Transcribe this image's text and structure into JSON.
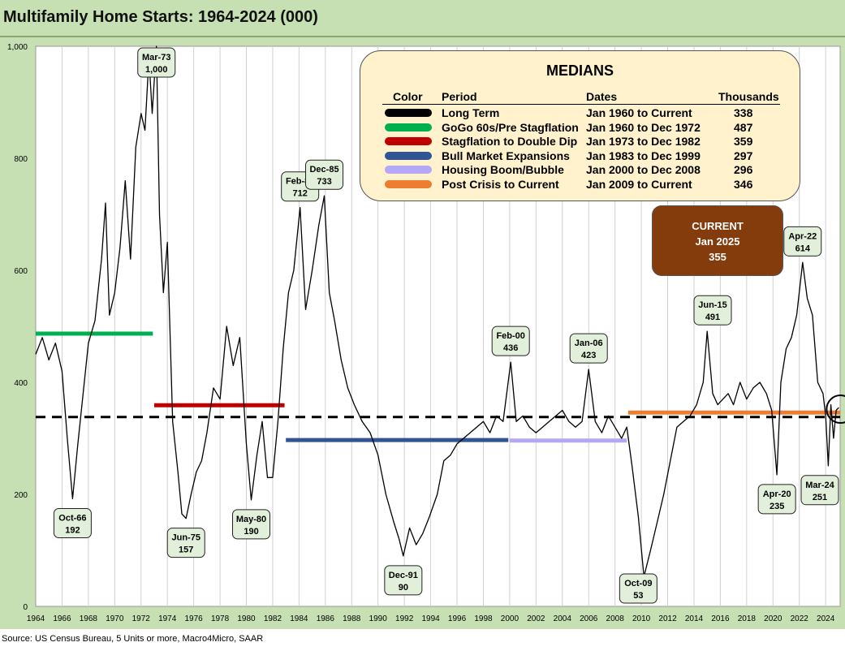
{
  "title": "Multifamily Home Starts: 1964-2024 (000)",
  "source": "Source: US Census Bureau, 5 Units or more, Macro4Micro, SAAR",
  "medians": {
    "title": "MEDIANS",
    "headers": {
      "color": "Color",
      "period": "Period",
      "dates": "Dates",
      "thousands": "Thousands"
    },
    "rows": [
      {
        "color": "#000000",
        "period": "Long Term",
        "dates": "Jan 1960 to Current",
        "value": "338"
      },
      {
        "color": "#00b050",
        "period": "GoGo 60s/Pre Stagflation",
        "dates": "Jan 1960 to Dec 1972",
        "value": "487"
      },
      {
        "color": "#c00000",
        "period": "Stagflation to Double Dip",
        "dates": "Jan 1973 to Dec 1982",
        "value": "359"
      },
      {
        "color": "#2f5597",
        "period": "Bull Market Expansions",
        "dates": "Jan 1983 to Dec 1999",
        "value": "297"
      },
      {
        "color": "#b4a7f5",
        "period": "Housing Boom/Bubble",
        "dates": "Jan 2000 to Dec 2008",
        "value": "296"
      },
      {
        "color": "#ed7d31",
        "period": "Post Crisis to Current",
        "dates": "Jan 2009 to Current",
        "value": "346"
      }
    ]
  },
  "current": {
    "line1": "CURRENT",
    "line2": "Jan 2025",
    "line3": "355"
  },
  "chart_data": {
    "type": "line",
    "title": "Multifamily Home Starts: 1964-2024 (000)",
    "xlim": [
      1964,
      2025.1
    ],
    "ylim": [
      0,
      1000
    ],
    "x_ticks": [
      "1964",
      "1966",
      "1968",
      "1970",
      "1972",
      "1974",
      "1976",
      "1978",
      "1980",
      "1982",
      "1984",
      "1986",
      "1988",
      "1990",
      "1992",
      "1994",
      "1996",
      "1998",
      "2000",
      "2002",
      "2004",
      "2006",
      "2008",
      "2010",
      "2012",
      "2014",
      "2016",
      "2018",
      "2020",
      "2022",
      "2024"
    ],
    "y_ticks": [
      "0",
      "200",
      "400",
      "600",
      "800",
      "1,000"
    ],
    "grid": "vertical",
    "series": [
      {
        "x": [
          1964.0,
          1964.5,
          1965.0,
          1965.5,
          1966.0,
          1966.4,
          1966.8,
          1967.2,
          1967.6,
          1968.0,
          1968.5,
          1969.0,
          1969.3,
          1969.6,
          1970.0,
          1970.4,
          1970.8,
          1971.2,
          1971.6,
          1972.0,
          1972.3,
          1972.6,
          1972.85,
          1973.17,
          1973.4,
          1973.7,
          1974.0,
          1974.4,
          1974.8,
          1975.1,
          1975.42,
          1975.8,
          1976.2,
          1976.6,
          1977.0,
          1977.5,
          1978.0,
          1978.5,
          1979.0,
          1979.5,
          1980.0,
          1980.37,
          1980.8,
          1981.2,
          1981.6,
          1982.0,
          1982.4,
          1982.8,
          1983.2,
          1983.6,
          1984.08,
          1984.5,
          1985.0,
          1985.5,
          1985.92,
          1986.3,
          1986.7,
          1987.2,
          1987.7,
          1988.2,
          1988.8,
          1989.4,
          1990.0,
          1990.6,
          1991.2,
          1991.6,
          1991.92,
          1992.4,
          1992.9,
          1993.4,
          1993.9,
          1994.5,
          1995.0,
          1995.5,
          1996.0,
          1996.5,
          1997.0,
          1997.5,
          1998.0,
          1998.5,
          1999.0,
          1999.5,
          2000.08,
          2000.5,
          2001.0,
          2001.5,
          2002.0,
          2002.5,
          2003.0,
          2003.5,
          2004.0,
          2004.5,
          2005.0,
          2005.5,
          2006.0,
          2006.5,
          2007.0,
          2007.5,
          2008.0,
          2008.5,
          2008.9,
          2009.3,
          2009.77,
          2010.2,
          2010.7,
          2011.2,
          2011.7,
          2012.2,
          2012.7,
          2013.2,
          2013.7,
          2014.2,
          2014.7,
          2015.0,
          2015.42,
          2015.8,
          2016.2,
          2016.6,
          2017.0,
          2017.5,
          2018.0,
          2018.5,
          2019.0,
          2019.5,
          2019.9,
          2020.3,
          2020.6,
          2021.0,
          2021.4,
          2021.8,
          2022.25,
          2022.6,
          2023.0,
          2023.4,
          2023.8,
          2024.0,
          2024.2,
          2024.4,
          2024.6,
          2024.8,
          2025.0
        ],
        "values": [
          450,
          480,
          440,
          470,
          420,
          300,
          192,
          290,
          380,
          470,
          510,
          620,
          720,
          520,
          560,
          640,
          760,
          620,
          820,
          880,
          850,
          980,
          880,
          1000,
          700,
          560,
          650,
          330,
          240,
          165,
          157,
          200,
          240,
          260,
          310,
          390,
          370,
          500,
          430,
          480,
          290,
          190,
          270,
          330,
          230,
          230,
          330,
          460,
          560,
          600,
          712,
          530,
          600,
          680,
          733,
          560,
          510,
          440,
          390,
          360,
          330,
          310,
          270,
          200,
          150,
          120,
          90,
          140,
          110,
          130,
          160,
          200,
          260,
          270,
          290,
          300,
          310,
          320,
          330,
          310,
          340,
          330,
          436,
          330,
          340,
          320,
          310,
          320,
          330,
          340,
          350,
          330,
          320,
          330,
          423,
          330,
          310,
          340,
          320,
          300,
          320,
          250,
          160,
          53,
          100,
          150,
          200,
          260,
          320,
          330,
          340,
          360,
          400,
          491,
          380,
          360,
          370,
          380,
          360,
          400,
          370,
          390,
          400,
          380,
          350,
          235,
          400,
          460,
          480,
          520,
          614,
          550,
          520,
          400,
          380,
          340,
          251,
          360,
          300,
          350,
          355
        ]
      }
    ],
    "medians": [
      {
        "x": [
          1964,
          2025.1
        ],
        "y": 338,
        "color": "#000000"
      },
      {
        "x": [
          1964,
          1972.9
        ],
        "y": 487,
        "color": "#00b050"
      },
      {
        "x": [
          1973,
          1982.9
        ],
        "y": 359,
        "color": "#c00000"
      },
      {
        "x": [
          1983,
          1999.9
        ],
        "y": 297,
        "color": "#2f5597"
      },
      {
        "x": [
          2000,
          2008.9
        ],
        "y": 296,
        "color": "#b4a7f5"
      },
      {
        "x": [
          2009,
          2025.1
        ],
        "y": 346,
        "color": "#ed7d31"
      }
    ],
    "annotations": [
      {
        "label": "Mar-73",
        "value": "1,000",
        "x": 1973.17,
        "y": 1000,
        "pos": "above"
      },
      {
        "label": "Oct-66",
        "value": "192",
        "x": 1966.8,
        "y": 192,
        "pos": "below"
      },
      {
        "label": "Jun-75",
        "value": "157",
        "x": 1975.42,
        "y": 157,
        "pos": "below"
      },
      {
        "label": "May-80",
        "value": "190",
        "x": 1980.37,
        "y": 190,
        "pos": "below"
      },
      {
        "label": "Feb-84",
        "value": "712",
        "x": 1984.08,
        "y": 712,
        "pos": "above"
      },
      {
        "label": "Dec-85",
        "value": "733",
        "x": 1985.92,
        "y": 733,
        "pos": "above"
      },
      {
        "label": "Dec-91",
        "value": "90",
        "x": 1991.92,
        "y": 90,
        "pos": "below"
      },
      {
        "label": "Feb-00",
        "value": "436",
        "x": 2000.08,
        "y": 436,
        "pos": "above"
      },
      {
        "label": "Jan-06",
        "value": "423",
        "x": 2006.0,
        "y": 423,
        "pos": "above"
      },
      {
        "label": "Oct-09",
        "value": "53",
        "x": 2009.77,
        "y": 53,
        "pos": "below"
      },
      {
        "label": "Jun-15",
        "value": "491",
        "x": 2015.42,
        "y": 491,
        "pos": "above"
      },
      {
        "label": "Apr-20",
        "value": "235",
        "x": 2020.3,
        "y": 235,
        "pos": "below"
      },
      {
        "label": "Apr-22",
        "value": "614",
        "x": 2022.25,
        "y": 614,
        "pos": "above"
      },
      {
        "label": "Mar-24",
        "value": "251",
        "x": 2024.2,
        "y": 251,
        "pos": "below"
      }
    ],
    "current_marker": {
      "x": 2025.0,
      "y": 355
    }
  }
}
